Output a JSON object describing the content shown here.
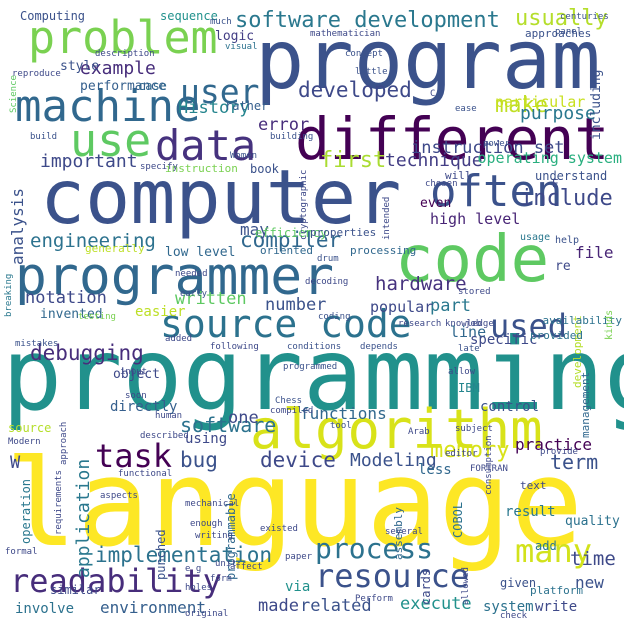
{
  "cloud": {
    "words": [
      {
        "text": "language",
        "color": "#fde725"
      },
      {
        "text": "programming",
        "color": "#21918c"
      },
      {
        "text": "computer",
        "color": "#3b528b"
      },
      {
        "text": "program",
        "color": "#3b528b"
      },
      {
        "text": "code",
        "color": "#5ec962"
      },
      {
        "text": "programmer",
        "color": "#31688e"
      },
      {
        "text": "different",
        "color": "#440154"
      },
      {
        "text": "algorithm",
        "color": "#d8e219"
      },
      {
        "text": "machine",
        "color": "#31688e"
      },
      {
        "text": "problem",
        "color": "#7ad151"
      },
      {
        "text": "source code",
        "color": "#2c728e"
      },
      {
        "text": "often",
        "color": "#3b528b"
      },
      {
        "text": "data",
        "color": "#46327e"
      },
      {
        "text": "use",
        "color": "#5ec962"
      },
      {
        "text": "readability",
        "color": "#472d7b"
      },
      {
        "text": "resource",
        "color": "#3b528b"
      },
      {
        "text": "process",
        "color": "#2c728e"
      },
      {
        "text": "used",
        "color": "#3b528b"
      },
      {
        "text": "many",
        "color": "#d2e21b"
      },
      {
        "text": "task",
        "color": "#440154"
      },
      {
        "text": "user",
        "color": "#31688e"
      },
      {
        "text": "software development",
        "color": "#2a788e"
      },
      {
        "text": "usually",
        "color": "#b5de2b"
      },
      {
        "text": "make",
        "color": "#c0df25"
      },
      {
        "text": "implementation",
        "color": "#2c728e"
      },
      {
        "text": "application",
        "color": "#2a788e"
      },
      {
        "text": "memory",
        "color": "#d8e219"
      },
      {
        "text": "software",
        "color": "#2c728e"
      },
      {
        "text": "debugging",
        "color": "#472d7b"
      },
      {
        "text": "hardware",
        "color": "#46327e"
      },
      {
        "text": "compiler",
        "color": "#31688e"
      },
      {
        "text": "include",
        "color": "#3e4989"
      },
      {
        "text": "first",
        "color": "#aadc32"
      },
      {
        "text": "developed",
        "color": "#3e4989"
      },
      {
        "text": "example",
        "color": "#472d7b"
      },
      {
        "text": "History",
        "color": "#25858e"
      },
      {
        "text": "purpose",
        "color": "#2a788e"
      },
      {
        "text": "error",
        "color": "#472d7b"
      },
      {
        "text": "engineering",
        "color": "#2c728e"
      },
      {
        "text": "analysis",
        "color": "#3b528b"
      },
      {
        "text": "important",
        "color": "#3e4989"
      },
      {
        "text": "technique",
        "color": "#433e85"
      },
      {
        "text": "operating system",
        "color": "#29af7f"
      },
      {
        "text": "high level",
        "color": "#482576"
      },
      {
        "text": "file",
        "color": "#482576"
      },
      {
        "text": "notation",
        "color": "#3e4989"
      },
      {
        "text": "written",
        "color": "#5ec962"
      },
      {
        "text": "number",
        "color": "#3b528b"
      },
      {
        "text": "part",
        "color": "#2a788e"
      },
      {
        "text": "bug",
        "color": "#3b528b"
      },
      {
        "text": "device",
        "color": "#3e4989"
      },
      {
        "text": "Modeling",
        "color": "#3b528b"
      },
      {
        "text": "term",
        "color": "#3b528b"
      },
      {
        "text": "time",
        "color": "#3e4989"
      },
      {
        "text": "new",
        "color": "#3b528b"
      },
      {
        "text": "environment",
        "color": "#355f8d"
      },
      {
        "text": "made",
        "color": "#3e4989"
      },
      {
        "text": "related",
        "color": "#3b528b"
      },
      {
        "text": "execute",
        "color": "#21918c"
      },
      {
        "text": "write",
        "color": "#3e4989"
      },
      {
        "text": "system",
        "color": "#2c728e"
      },
      {
        "text": "involve",
        "color": "#2c728e"
      },
      {
        "text": "functions",
        "color": "#31688e"
      },
      {
        "text": "one",
        "color": "#3e4989"
      },
      {
        "text": "may",
        "color": "#3b528b"
      },
      {
        "text": "popular",
        "color": "#3e4989"
      },
      {
        "text": "line",
        "color": "#31688e"
      },
      {
        "text": "specific",
        "color": "#3e4989"
      },
      {
        "text": "particular",
        "color": "#c8e020"
      },
      {
        "text": "practice",
        "color": "#440154"
      },
      {
        "text": "control",
        "color": "#3b528b"
      },
      {
        "text": "directly",
        "color": "#355f8d"
      },
      {
        "text": "using",
        "color": "#3e4989"
      },
      {
        "text": "less",
        "color": "#31688e"
      },
      {
        "text": "result",
        "color": "#2a788e"
      },
      {
        "text": "quality",
        "color": "#2c728e"
      },
      {
        "text": "add",
        "color": "#2a788e"
      },
      {
        "text": "via",
        "color": "#21918c"
      },
      {
        "text": "low level",
        "color": "#31688e"
      },
      {
        "text": "performance",
        "color": "#355f8d"
      },
      {
        "text": "style",
        "color": "#3b528b"
      },
      {
        "text": "case",
        "color": "#31688e"
      },
      {
        "text": "logic",
        "color": "#433e85"
      },
      {
        "text": "Computing",
        "color": "#3b528b"
      },
      {
        "text": "sequence",
        "color": "#21918c"
      },
      {
        "text": "invented",
        "color": "#31688e"
      },
      {
        "text": "object",
        "color": "#3e4989"
      },
      {
        "text": "management",
        "color": "#31688e"
      },
      {
        "text": "development",
        "color": "#b5de2b"
      },
      {
        "text": "COBOL",
        "color": "#2c728e"
      },
      {
        "text": "cards",
        "color": "#3e4989"
      },
      {
        "text": "assembly",
        "color": "#31688e"
      },
      {
        "text": "punched",
        "color": "#3b528b"
      },
      {
        "text": "programmable",
        "color": "#31688e"
      },
      {
        "text": "operation",
        "color": "#2a788e"
      },
      {
        "text": "source",
        "color": "#b5de2b"
      },
      {
        "text": "IBM",
        "color": "#25858e"
      },
      {
        "text": "text",
        "color": "#3e4989"
      },
      {
        "text": "given",
        "color": "#3b528b"
      },
      {
        "text": "similar",
        "color": "#3e4989"
      },
      {
        "text": "platform",
        "color": "#2c728e"
      },
      {
        "text": "including",
        "color": "#3b528b"
      },
      {
        "text": "approaches",
        "color": "#3b528b"
      },
      {
        "text": "instruction",
        "color": "#7ad151"
      },
      {
        "text": "book",
        "color": "#3b528b"
      },
      {
        "text": "understand",
        "color": "#3b528b"
      },
      {
        "text": "even",
        "color": "#440154"
      },
      {
        "text": "rather",
        "color": "#355f8d"
      },
      {
        "text": "will",
        "color": "#3e4989"
      },
      {
        "text": "availability",
        "color": "#2c728e"
      },
      {
        "text": "provided",
        "color": "#2c728e"
      },
      {
        "text": "easier",
        "color": "#bddf26"
      },
      {
        "text": "efficiency",
        "color": "#5ec962"
      },
      {
        "text": "generally",
        "color": "#bddf26"
      },
      {
        "text": "properties",
        "color": "#3b528b"
      },
      {
        "text": "oriented",
        "color": "#31688e"
      },
      {
        "text": "processing",
        "color": "#31688e"
      },
      {
        "text": "help",
        "color": "#3b528b"
      },
      {
        "text": "kinds",
        "color": "#7ad151"
      },
      {
        "text": "usage",
        "color": "#2a788e"
      },
      {
        "text": "concept",
        "color": "#3b528b"
      },
      {
        "text": "centuries",
        "color": "#3b528b"
      },
      {
        "text": "panel",
        "color": "#3b528b"
      },
      {
        "text": "mathematician",
        "color": "#3e4989"
      },
      {
        "text": "description",
        "color": "#3e4989"
      },
      {
        "text": "reproduce",
        "color": "#3e4989"
      },
      {
        "text": "much",
        "color": "#3b528b"
      },
      {
        "text": "visual",
        "color": "#2c728e"
      },
      {
        "text": "little",
        "color": "#3b528b"
      },
      {
        "text": "ease",
        "color": "#3b528b"
      },
      {
        "text": "power",
        "color": "#3b528b"
      },
      {
        "text": "building",
        "color": "#3b528b"
      },
      {
        "text": "Women",
        "color": "#3b528b"
      },
      {
        "text": "specify",
        "color": "#3e4989"
      },
      {
        "text": "chosen",
        "color": "#3e4989"
      },
      {
        "text": "cryptographic",
        "color": "#3e4989"
      },
      {
        "text": "intended",
        "color": "#3e4989"
      },
      {
        "text": "Science",
        "color": "#5ec962"
      },
      {
        "text": "build",
        "color": "#3b528b"
      },
      {
        "text": "needed",
        "color": "#3e4989"
      },
      {
        "text": "early",
        "color": "#3b528b"
      },
      {
        "text": "testing",
        "color": "#7ad151"
      },
      {
        "text": "breaking",
        "color": "#2a788e"
      },
      {
        "text": "mistakes",
        "color": "#3b528b"
      },
      {
        "text": "added",
        "color": "#3e4989"
      },
      {
        "text": "following",
        "color": "#3e4989"
      },
      {
        "text": "conditions",
        "color": "#3b528b"
      },
      {
        "text": "depends",
        "color": "#3b528b"
      },
      {
        "text": "late",
        "color": "#3b528b"
      },
      {
        "text": "job",
        "color": "#3e4989"
      },
      {
        "text": "coding",
        "color": "#3b528b"
      },
      {
        "text": "research",
        "color": "#3e4989"
      },
      {
        "text": "knowledge",
        "color": "#3e4989"
      },
      {
        "text": "drum",
        "color": "#3b528b"
      },
      {
        "text": "decoding",
        "color": "#3e4989"
      },
      {
        "text": "stored",
        "color": "#3e4989"
      },
      {
        "text": "allow",
        "color": "#3e4989"
      },
      {
        "text": "input",
        "color": "#3e4989"
      },
      {
        "text": "programmed",
        "color": "#3b528b"
      },
      {
        "text": "soon",
        "color": "#3e4989"
      },
      {
        "text": "Chess",
        "color": "#3b528b"
      },
      {
        "text": "human",
        "color": "#3e4989"
      },
      {
        "text": "compiled",
        "color": "#3e4989"
      },
      {
        "text": "tool",
        "color": "#3b528b"
      },
      {
        "text": "Arab",
        "color": "#3e4989"
      },
      {
        "text": "subject",
        "color": "#3e4989"
      },
      {
        "text": "described",
        "color": "#3e4989"
      },
      {
        "text": "editor",
        "color": "#3e4989"
      },
      {
        "text": "FORTRAN",
        "color": "#3e4989"
      },
      {
        "text": "provide",
        "color": "#3e4989"
      },
      {
        "text": "consumption",
        "color": "#3e4989"
      },
      {
        "text": "Modern",
        "color": "#3e4989"
      },
      {
        "text": "functional",
        "color": "#3e4989"
      },
      {
        "text": "aspects",
        "color": "#3e4989"
      },
      {
        "text": "mechanical",
        "color": "#3e4989"
      },
      {
        "text": "enough",
        "color": "#3e4989"
      },
      {
        "text": "writing",
        "color": "#3e4989"
      },
      {
        "text": "e g",
        "color": "#3e4989"
      },
      {
        "text": "unit",
        "color": "#3e4989"
      },
      {
        "text": "affect",
        "color": "#3e4989"
      },
      {
        "text": "form",
        "color": "#3e4989"
      },
      {
        "text": "paper",
        "color": "#3e4989"
      },
      {
        "text": "existed",
        "color": "#3e4989"
      },
      {
        "text": "holes",
        "color": "#3e4989"
      },
      {
        "text": "original",
        "color": "#3e4989"
      },
      {
        "text": "several",
        "color": "#3e4989"
      },
      {
        "text": "allowed",
        "color": "#3e4989"
      },
      {
        "text": "Perform",
        "color": "#3e4989"
      },
      {
        "text": "check",
        "color": "#3e4989"
      },
      {
        "text": "requirements",
        "color": "#3e4989"
      },
      {
        "text": "approach",
        "color": "#3e4989"
      },
      {
        "text": "formal",
        "color": "#3e4989"
      },
      {
        "text": "instruction set",
        "color": "#3e4989"
      },
      {
        "text": "re",
        "color": "#3e4989"
      },
      {
        "text": "W",
        "color": "#3e4989"
      },
      {
        "text": "E",
        "color": "#3e4989"
      },
      {
        "text": "C",
        "color": "#3e4989"
      },
      {
        "text": "AI",
        "color": "#3e4989"
      },
      {
        "text": "well",
        "color": "#3e4989"
      }
    ]
  }
}
